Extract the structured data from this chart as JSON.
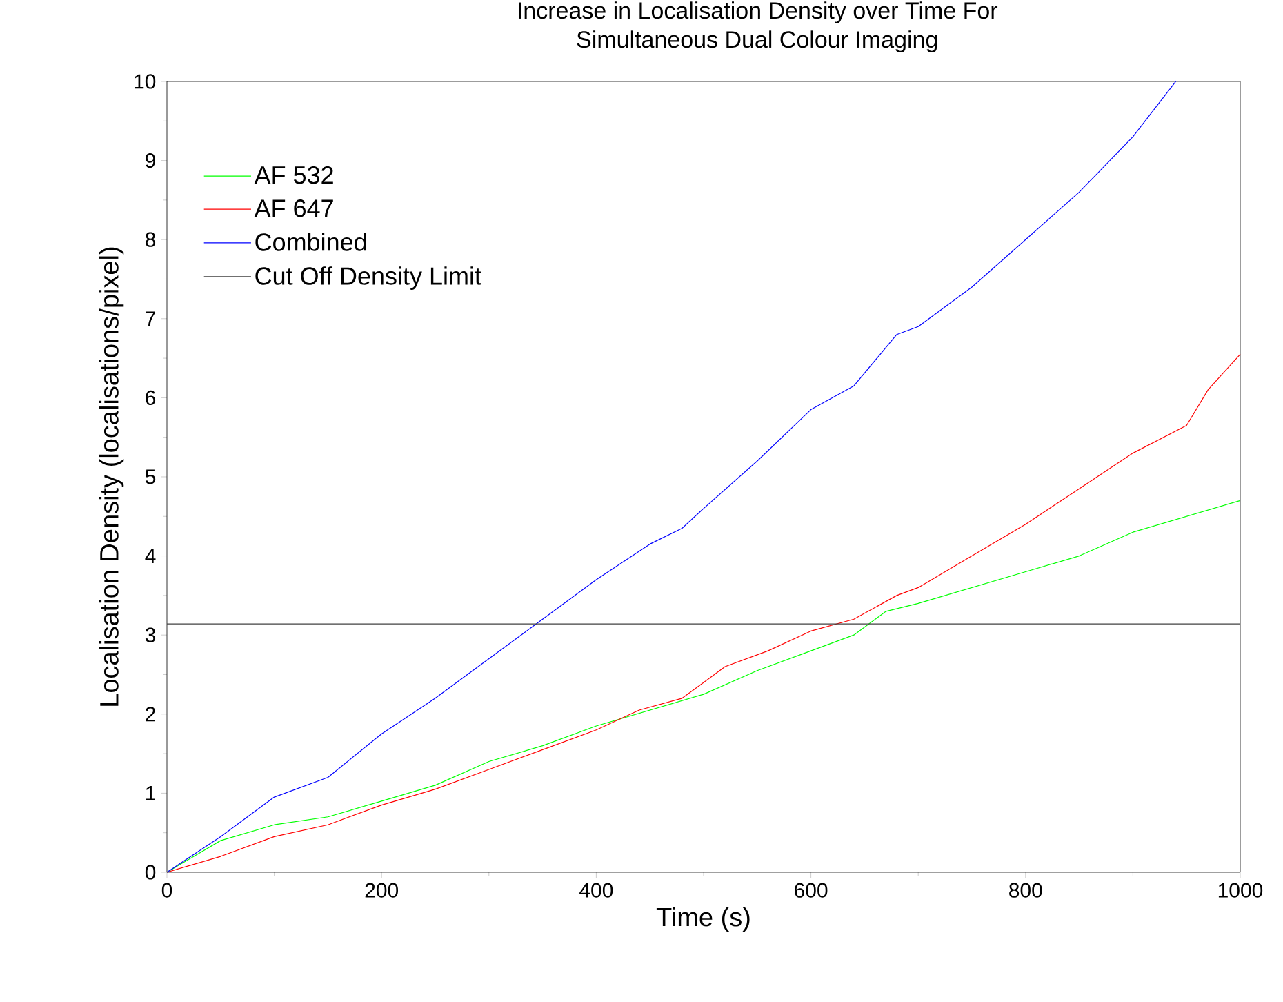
{
  "chart_data": {
    "type": "line",
    "title": "Increase in Localisation Density over Time For",
    "subtitle": "Simultaneous Dual Colour Imaging",
    "xlabel": "Time (s)",
    "ylabel": "Localisation Density (localisations/pixel)",
    "xlim": [
      0,
      1000
    ],
    "ylim": [
      0,
      10
    ],
    "xticks": [
      0,
      200,
      400,
      600,
      800,
      1000
    ],
    "yticks": [
      0,
      1,
      2,
      3,
      4,
      5,
      6,
      7,
      8,
      9,
      10
    ],
    "legend": "top left",
    "grid": false,
    "marker": "none",
    "line_style": "solid",
    "series": [
      {
        "name": "AF 532",
        "color": "#00ff00",
        "x": [
          0,
          50,
          100,
          150,
          200,
          250,
          300,
          350,
          400,
          450,
          500,
          550,
          600,
          640,
          670,
          700,
          750,
          800,
          850,
          900,
          950,
          1000
        ],
        "values": [
          0,
          0.4,
          0.6,
          0.7,
          0.9,
          1.1,
          1.4,
          1.6,
          1.85,
          2.05,
          2.25,
          2.55,
          2.8,
          3.0,
          3.3,
          3.4,
          3.6,
          3.8,
          4.0,
          4.3,
          4.5,
          4.7
        ]
      },
      {
        "name": "AF 647",
        "color": "#ff0000",
        "x": [
          0,
          50,
          100,
          150,
          200,
          250,
          300,
          350,
          400,
          440,
          480,
          520,
          560,
          600,
          640,
          680,
          700,
          750,
          800,
          850,
          900,
          950,
          970,
          1000
        ],
        "values": [
          0,
          0.2,
          0.45,
          0.6,
          0.85,
          1.05,
          1.3,
          1.55,
          1.8,
          2.05,
          2.2,
          2.6,
          2.8,
          3.05,
          3.2,
          3.5,
          3.6,
          4.0,
          4.4,
          4.85,
          5.3,
          5.65,
          6.1,
          6.55
        ]
      },
      {
        "name": "Combined",
        "color": "#0000ff",
        "x": [
          0,
          50,
          100,
          150,
          200,
          250,
          300,
          340,
          400,
          450,
          480,
          500,
          550,
          600,
          640,
          680,
          700,
          750,
          800,
          850,
          900,
          940
        ],
        "values": [
          0,
          0.45,
          0.95,
          1.2,
          1.75,
          2.2,
          2.7,
          3.1,
          3.7,
          4.15,
          4.35,
          4.6,
          5.2,
          5.85,
          6.15,
          6.8,
          6.9,
          7.4,
          8.0,
          8.6,
          9.3,
          10.0
        ]
      },
      {
        "name": "Cut Off Density Limit",
        "color": "#404040",
        "x": [
          0,
          1000
        ],
        "values": [
          3.14,
          3.14
        ]
      }
    ]
  }
}
